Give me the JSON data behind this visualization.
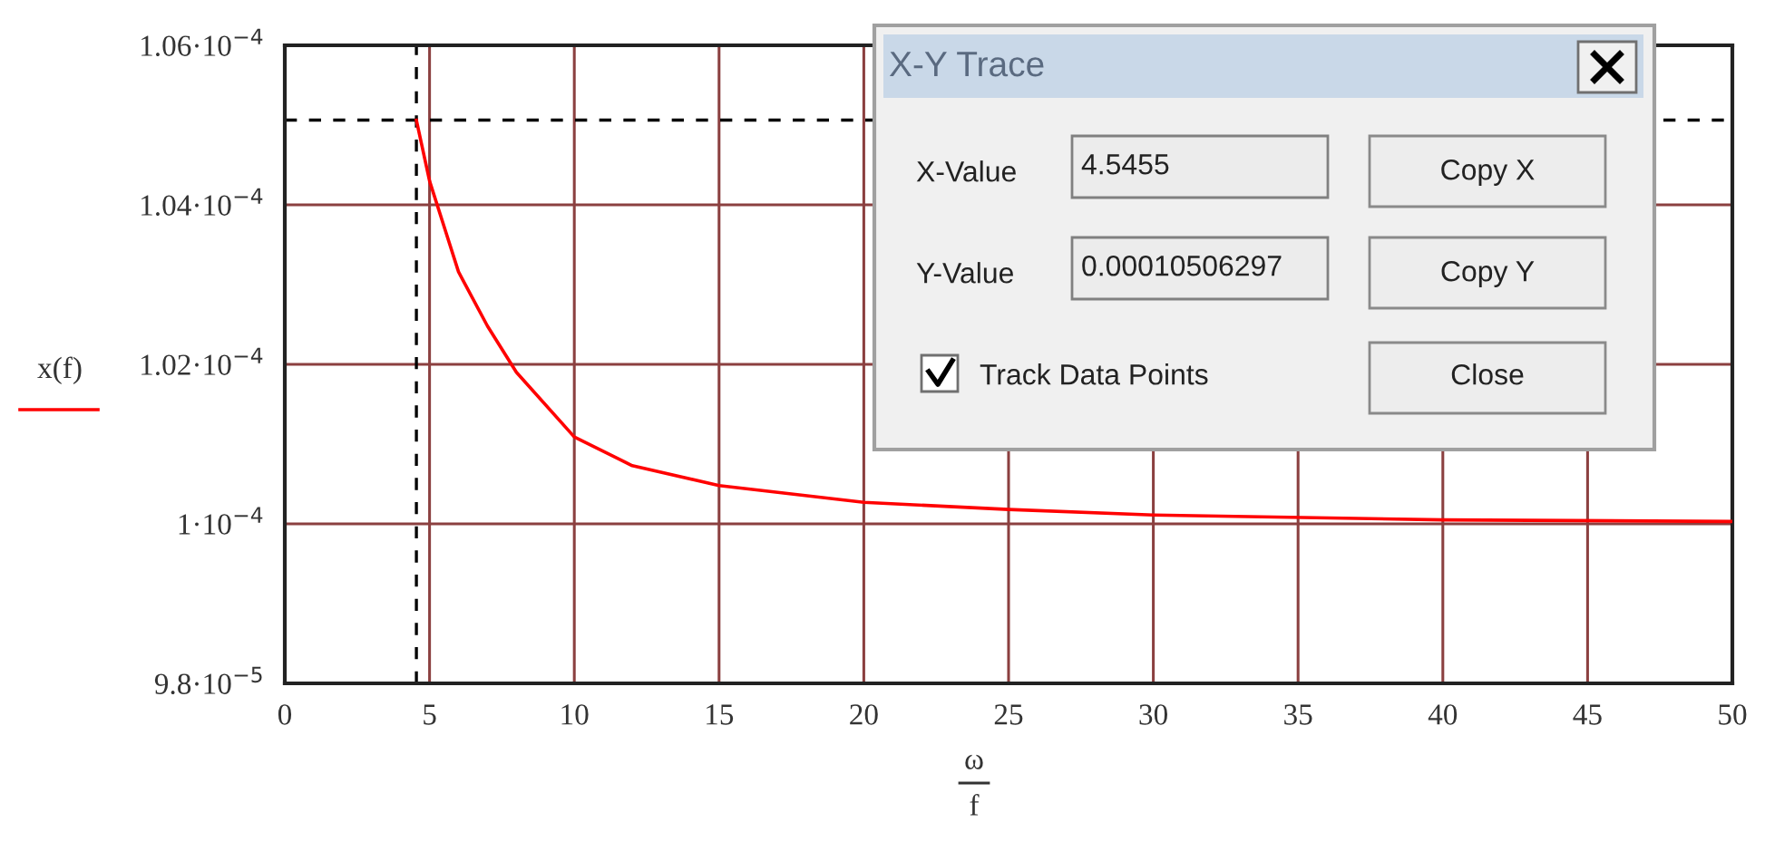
{
  "chart_data": {
    "type": "line",
    "xlabel": "ω\nf",
    "ylabel": "x(f)",
    "series": [
      {
        "color": "#ff0000",
        "x": [
          4.5455,
          5,
          6,
          7,
          8,
          10,
          12,
          15,
          20,
          25,
          30,
          40,
          50
        ],
        "values": [
          0.00010506,
          0.0001043,
          0.00010316,
          0.00010248,
          0.0001019,
          0.00010109,
          0.00010073,
          0.00010048,
          0.00010027,
          0.00010018,
          0.00010011,
          0.00010005,
          0.00010003
        ]
      }
    ],
    "xlim": [
      0,
      50
    ],
    "xticks": [
      0,
      5,
      10,
      15,
      20,
      25,
      30,
      35,
      40,
      45,
      50
    ],
    "ylim": [
      9.8e-05,
      0.000106
    ],
    "yticks": [
      {
        "value": 9.8e-05,
        "label": "9.8·10$^{−5}$"
      },
      {
        "value": 0.0001,
        "label": "1·10$^{−4}$"
      },
      {
        "value": 0.000102,
        "label": "1.02·10$^{−4}$"
      },
      {
        "value": 0.000104,
        "label": "1.04·10$^{−4}$"
      },
      {
        "value": 0.000106,
        "label": "1.06·10$^{−4}$"
      }
    ],
    "grid": true,
    "line_style": "solid",
    "marker": "none",
    "ref_lines": [
      {
        "axis": "x",
        "value": 4.5455,
        "color": "#000000",
        "line_style": "dashed"
      },
      {
        "axis": "y",
        "value": 0.00010506297,
        "color": "#000000",
        "line_style": "dashed"
      }
    ],
    "annotations": [
      "X-Y Trace",
      "X-Value",
      "4.5455",
      "Y-Value",
      "0.00010506297",
      "Copy X",
      "Copy Y",
      "Track Data Points",
      "Close"
    ]
  }
}
